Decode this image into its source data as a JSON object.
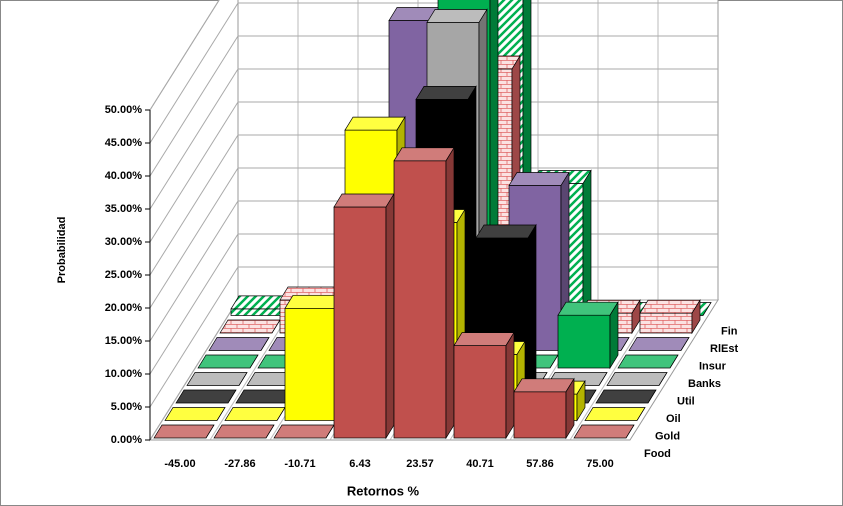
{
  "chart_data": {
    "type": "bar3d",
    "x_label": "Retornos %",
    "y_label": "Probabilidad",
    "categories": [
      "-45.00",
      "-27.86",
      "-10.71",
      "6.43",
      "23.57",
      "40.71",
      "57.86",
      "75.00"
    ],
    "ylim": [
      0,
      50
    ],
    "yticks": [
      {
        "value": 0,
        "label": "0.00%"
      },
      {
        "value": 5,
        "label": "5.00%"
      },
      {
        "value": 10,
        "label": "10.00%"
      },
      {
        "value": 15,
        "label": "15.00%"
      },
      {
        "value": 20,
        "label": "20.00%"
      },
      {
        "value": 25,
        "label": "25.00%"
      },
      {
        "value": 30,
        "label": "30.00%"
      },
      {
        "value": 35,
        "label": "35.00%"
      },
      {
        "value": 40,
        "label": "40.00%"
      },
      {
        "value": 45,
        "label": "45.00%"
      },
      {
        "value": 50,
        "label": "50.00%"
      }
    ],
    "grid": true,
    "series": [
      {
        "name": "Food",
        "color": "#c0504d",
        "values": [
          0,
          0,
          0,
          35,
          42,
          14,
          7,
          0
        ]
      },
      {
        "name": "Gold",
        "color": "#ffff00",
        "values": [
          0,
          0,
          17,
          44,
          30,
          10,
          4,
          0
        ]
      },
      {
        "name": "Oil",
        "color": "#000000",
        "values": [
          0,
          0,
          0,
          0,
          46,
          25,
          0,
          0
        ]
      },
      {
        "name": "Util",
        "color": "#a6a6a6",
        "values": [
          0,
          0,
          0,
          0,
          55,
          0,
          0,
          0
        ]
      },
      {
        "name": "Banks",
        "color": "#00b050",
        "values": [
          0,
          0,
          3,
          0,
          58,
          0,
          8,
          0
        ]
      },
      {
        "name": "Insur",
        "color": "#8064a2",
        "values": [
          0,
          0,
          0,
          50,
          0,
          25,
          0,
          0
        ]
      },
      {
        "name": "RlEst",
        "color": "#e06666",
        "pattern": "brick",
        "values": [
          0,
          5,
          0,
          30,
          40,
          0,
          3,
          3
        ]
      },
      {
        "name": "Fin",
        "color": "#00b050",
        "pattern": "stripes",
        "values": [
          1,
          0,
          0,
          0,
          50,
          20,
          0,
          0
        ]
      }
    ]
  }
}
